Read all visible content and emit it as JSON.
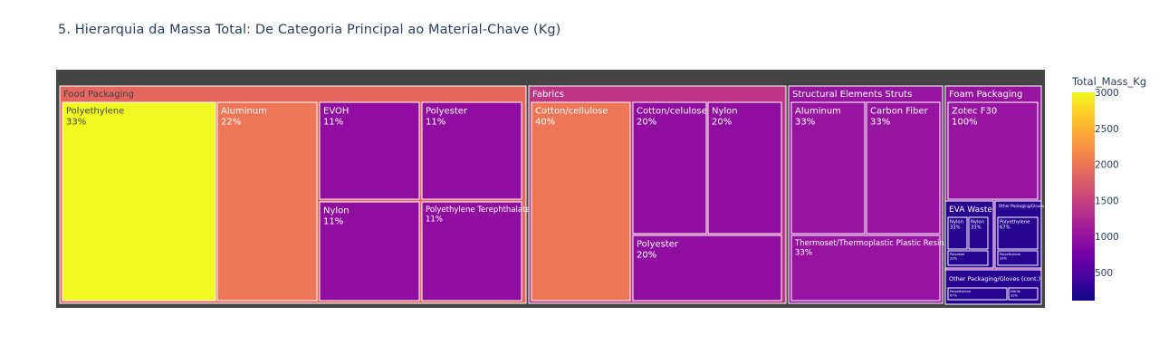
{
  "title": "5. Hierarquia da Massa Total: De Categoria Principal ao Material-Chave (Kg)",
  "colorbar": {
    "title": "Total_Mass_Kg",
    "ticks": [
      "3000",
      "2500",
      "2000",
      "1500",
      "1000",
      "500"
    ]
  },
  "chart_data": {
    "type": "treemap",
    "root_color": "#444444",
    "colorscale": [
      "#0d0887",
      "#46039f",
      "#7201a8",
      "#9c179e",
      "#bd3786",
      "#d8576b",
      "#ed7953",
      "#fb9f3a",
      "#fdca26",
      "#f0f921"
    ],
    "color_range": [
      107,
      3000
    ],
    "colorbar_tick_values": [
      3000,
      2500,
      2000,
      1500,
      1000,
      500
    ],
    "groups": [
      {
        "label": "Food Packaging",
        "color": "#e4665f",
        "children": [
          {
            "label": "Polyethylene",
            "pct": "33%",
            "color": "#f0f921"
          },
          {
            "label": "Aluminum",
            "pct": "22%",
            "color": "#ec7655"
          },
          {
            "label": "EVOH",
            "pct": "11%",
            "color": "#8f0ea0"
          },
          {
            "label": "Polyester",
            "pct": "11%",
            "color": "#8f0ea0"
          },
          {
            "label": "Nylon",
            "pct": "11%",
            "color": "#8f0ea0"
          },
          {
            "label": "Polyethylene Terephthalate",
            "pct": "11%",
            "color": "#8f0ea0"
          }
        ]
      },
      {
        "label": "Fabrics",
        "color": "#bd3786",
        "children": [
          {
            "label": "Cotton/cellulose",
            "pct": "40%",
            "color": "#ec7655"
          },
          {
            "label": "Cotton/celulose",
            "pct": "20%",
            "color": "#8f0ea0"
          },
          {
            "label": "Nylon",
            "pct": "20%",
            "color": "#8f0ea0"
          },
          {
            "label": "Polyester",
            "pct": "20%",
            "color": "#8f0ea0"
          }
        ]
      },
      {
        "label": "Structural Elements Struts",
        "color": "#9614a0",
        "children": [
          {
            "label": "Aluminum",
            "pct": "33%",
            "color": "#9614a0"
          },
          {
            "label": "Carbon Fiber",
            "pct": "33%",
            "color": "#9614a0"
          },
          {
            "label": "Thermoset/Thermoplastic Plastic Resin",
            "pct": "33%",
            "color": "#9614a0"
          }
        ]
      },
      {
        "label": "Foam Packaging",
        "color": "#9614a0",
        "children": [
          {
            "label": "Zotec F30",
            "pct": "100%",
            "color": "#9614a0"
          },
          {
            "label": "EVA Waste",
            "color": "#270590",
            "children": [
              {
                "label": "Nylon",
                "pct": "33%",
                "color": "#270590"
              },
              {
                "label": "Nylon",
                "pct": "33%",
                "color": "#270590"
              },
              {
                "label": "Polyester",
                "pct": "33%",
                "color": "#270590"
              }
            ]
          },
          {
            "label": "Other Packaging/Gloves",
            "color": "#270590",
            "children": [
              {
                "label": "Polyethylene",
                "pct": "67%",
                "color": "#270590"
              },
              {
                "label": "Polyethylene",
                "pct": "33%",
                "color": "#270590"
              }
            ]
          },
          {
            "label": "Other Packaging/Gloves (cont.)",
            "color": "#270590",
            "children": [
              {
                "label": "Polyethylene",
                "pct": "67%",
                "color": "#270590"
              },
              {
                "label": "Nitrile",
                "pct": "33%",
                "color": "#270590"
              }
            ]
          }
        ]
      }
    ]
  }
}
